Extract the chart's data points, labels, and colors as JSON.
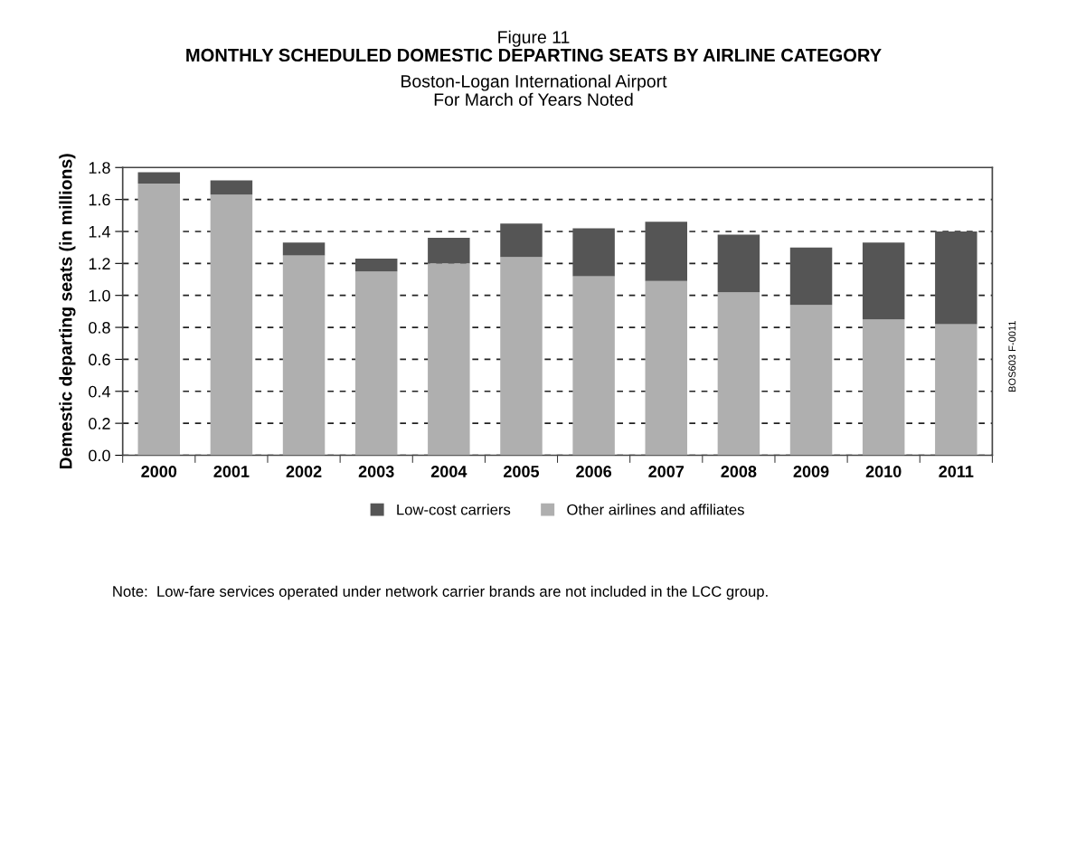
{
  "chart_data": {
    "type": "bar",
    "title": "MONTHLY SCHEDULED DOMESTIC DEPARTING SEATS BY AIRLINE CATEGORY",
    "subtitle": "Boston-Logan International Airport\nFor March of Years Noted",
    "ylabel": "Demestic departing seats (in millions)",
    "annotations": [
      "Figure 11",
      "Note:  Low-fare services operated under network carrier brands are not included in the LCC group.",
      "BOS603 F-0011"
    ],
    "categories": [
      "2000",
      "2001",
      "2002",
      "2003",
      "2004",
      "2005",
      "2006",
      "2007",
      "2008",
      "2009",
      "2010",
      "2011"
    ],
    "stacked": true,
    "series": [
      {
        "name": "Other airlines and affiliates",
        "color": "#afafaf",
        "values": [
          1.7,
          1.63,
          1.25,
          1.15,
          1.2,
          1.24,
          1.12,
          1.09,
          1.02,
          0.94,
          0.85,
          0.82
        ]
      },
      {
        "name": "Low-cost carriers",
        "color": "#555555",
        "values": [
          0.07,
          0.09,
          0.08,
          0.08,
          0.16,
          0.21,
          0.3,
          0.37,
          0.36,
          0.36,
          0.48,
          0.58
        ]
      }
    ],
    "ylim": [
      0,
      1.8
    ],
    "yticks": [
      {
        "value": 0,
        "label": "0.0"
      },
      {
        "value": 0.2,
        "label": "0.2"
      },
      {
        "value": 0.4,
        "label": "0.4"
      },
      {
        "value": 0.6,
        "label": "0.6"
      },
      {
        "value": 0.8,
        "label": "0.8"
      },
      {
        "value": 1.0,
        "label": "1.0"
      },
      {
        "value": 1.2,
        "label": "1.2"
      },
      {
        "value": 1.4,
        "label": "1.4"
      },
      {
        "value": 1.6,
        "label": "1.6"
      },
      {
        "value": 1.8,
        "label": "1.8"
      }
    ],
    "grid": "y",
    "line_style": "dashed",
    "legend": "bottom"
  }
}
